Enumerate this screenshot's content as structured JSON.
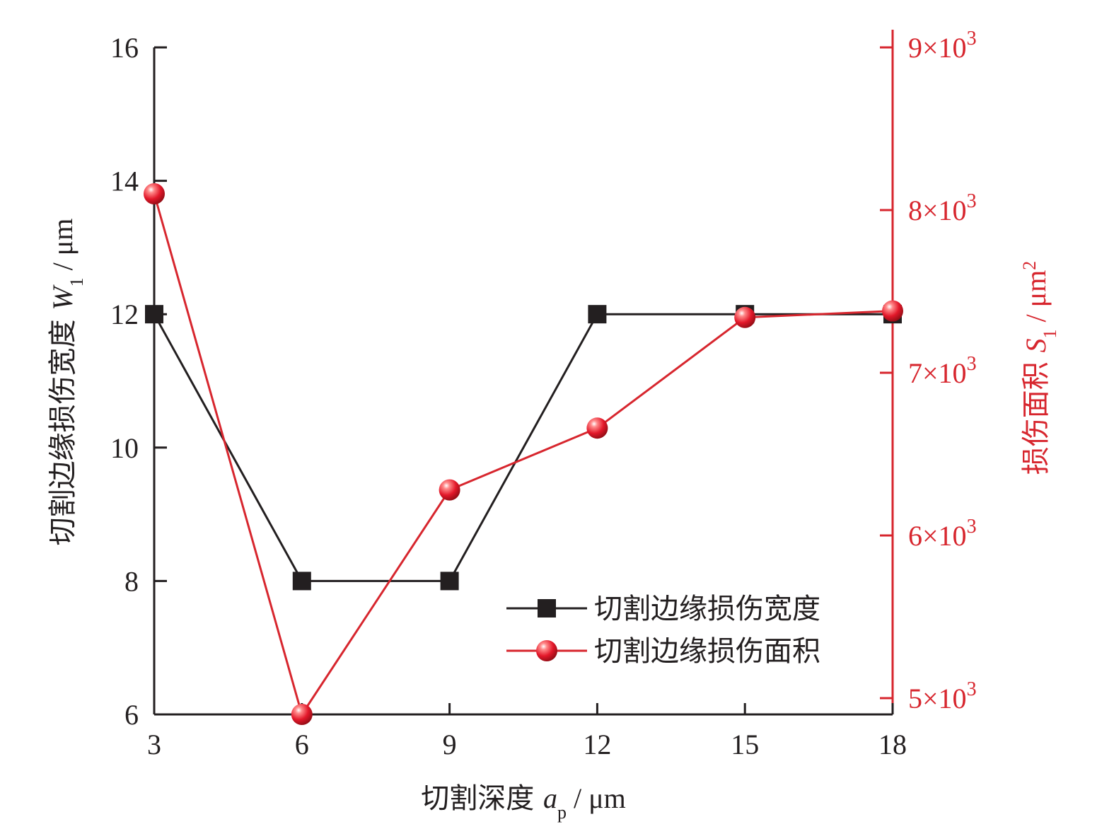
{
  "chart_data": {
    "type": "line",
    "x": [
      3,
      6,
      9,
      12,
      15,
      18
    ],
    "xlim": [
      3,
      18
    ],
    "xticks": [
      "3",
      "6",
      "9",
      "12",
      "15",
      "18"
    ],
    "xlabel": {
      "prefix": "切割深度 ",
      "var": "a",
      "sub": "p",
      "unit": " / μm"
    },
    "y_left": {
      "lim": [
        6,
        16
      ],
      "ticks": [
        6,
        8,
        10,
        12,
        14,
        16
      ],
      "tick_labels": [
        "6",
        "8",
        "10",
        "12",
        "14",
        "16"
      ],
      "label": {
        "prefix": "切割边缘损伤宽度 ",
        "var": "W",
        "sub": "1",
        "unit": " / μm"
      },
      "color": "#231f20"
    },
    "y_right": {
      "lim": [
        4900,
        9000
      ],
      "ticks": [
        5000,
        6000,
        7000,
        8000,
        9000
      ],
      "tick_mantissa": [
        "5×10",
        "6×10",
        "7×10",
        "8×10",
        "9×10"
      ],
      "tick_exp": "3",
      "label": {
        "prefix": "损伤面积 ",
        "var": "S",
        "sub": "1",
        "unit": " / μm",
        "sup": "2"
      },
      "color": "#d7262e"
    },
    "series": [
      {
        "name": "切割边缘损伤宽度",
        "axis": "left",
        "marker": "square",
        "color": "#231f20",
        "values": [
          12,
          8,
          8,
          12,
          12,
          12
        ]
      },
      {
        "name": "切割边缘损伤面积",
        "axis": "right",
        "marker": "sphere",
        "color": "#d7262e",
        "values": [
          8100,
          4900,
          6280,
          6660,
          7340,
          7380
        ]
      }
    ],
    "legend": "lower-right",
    "grid": false
  }
}
